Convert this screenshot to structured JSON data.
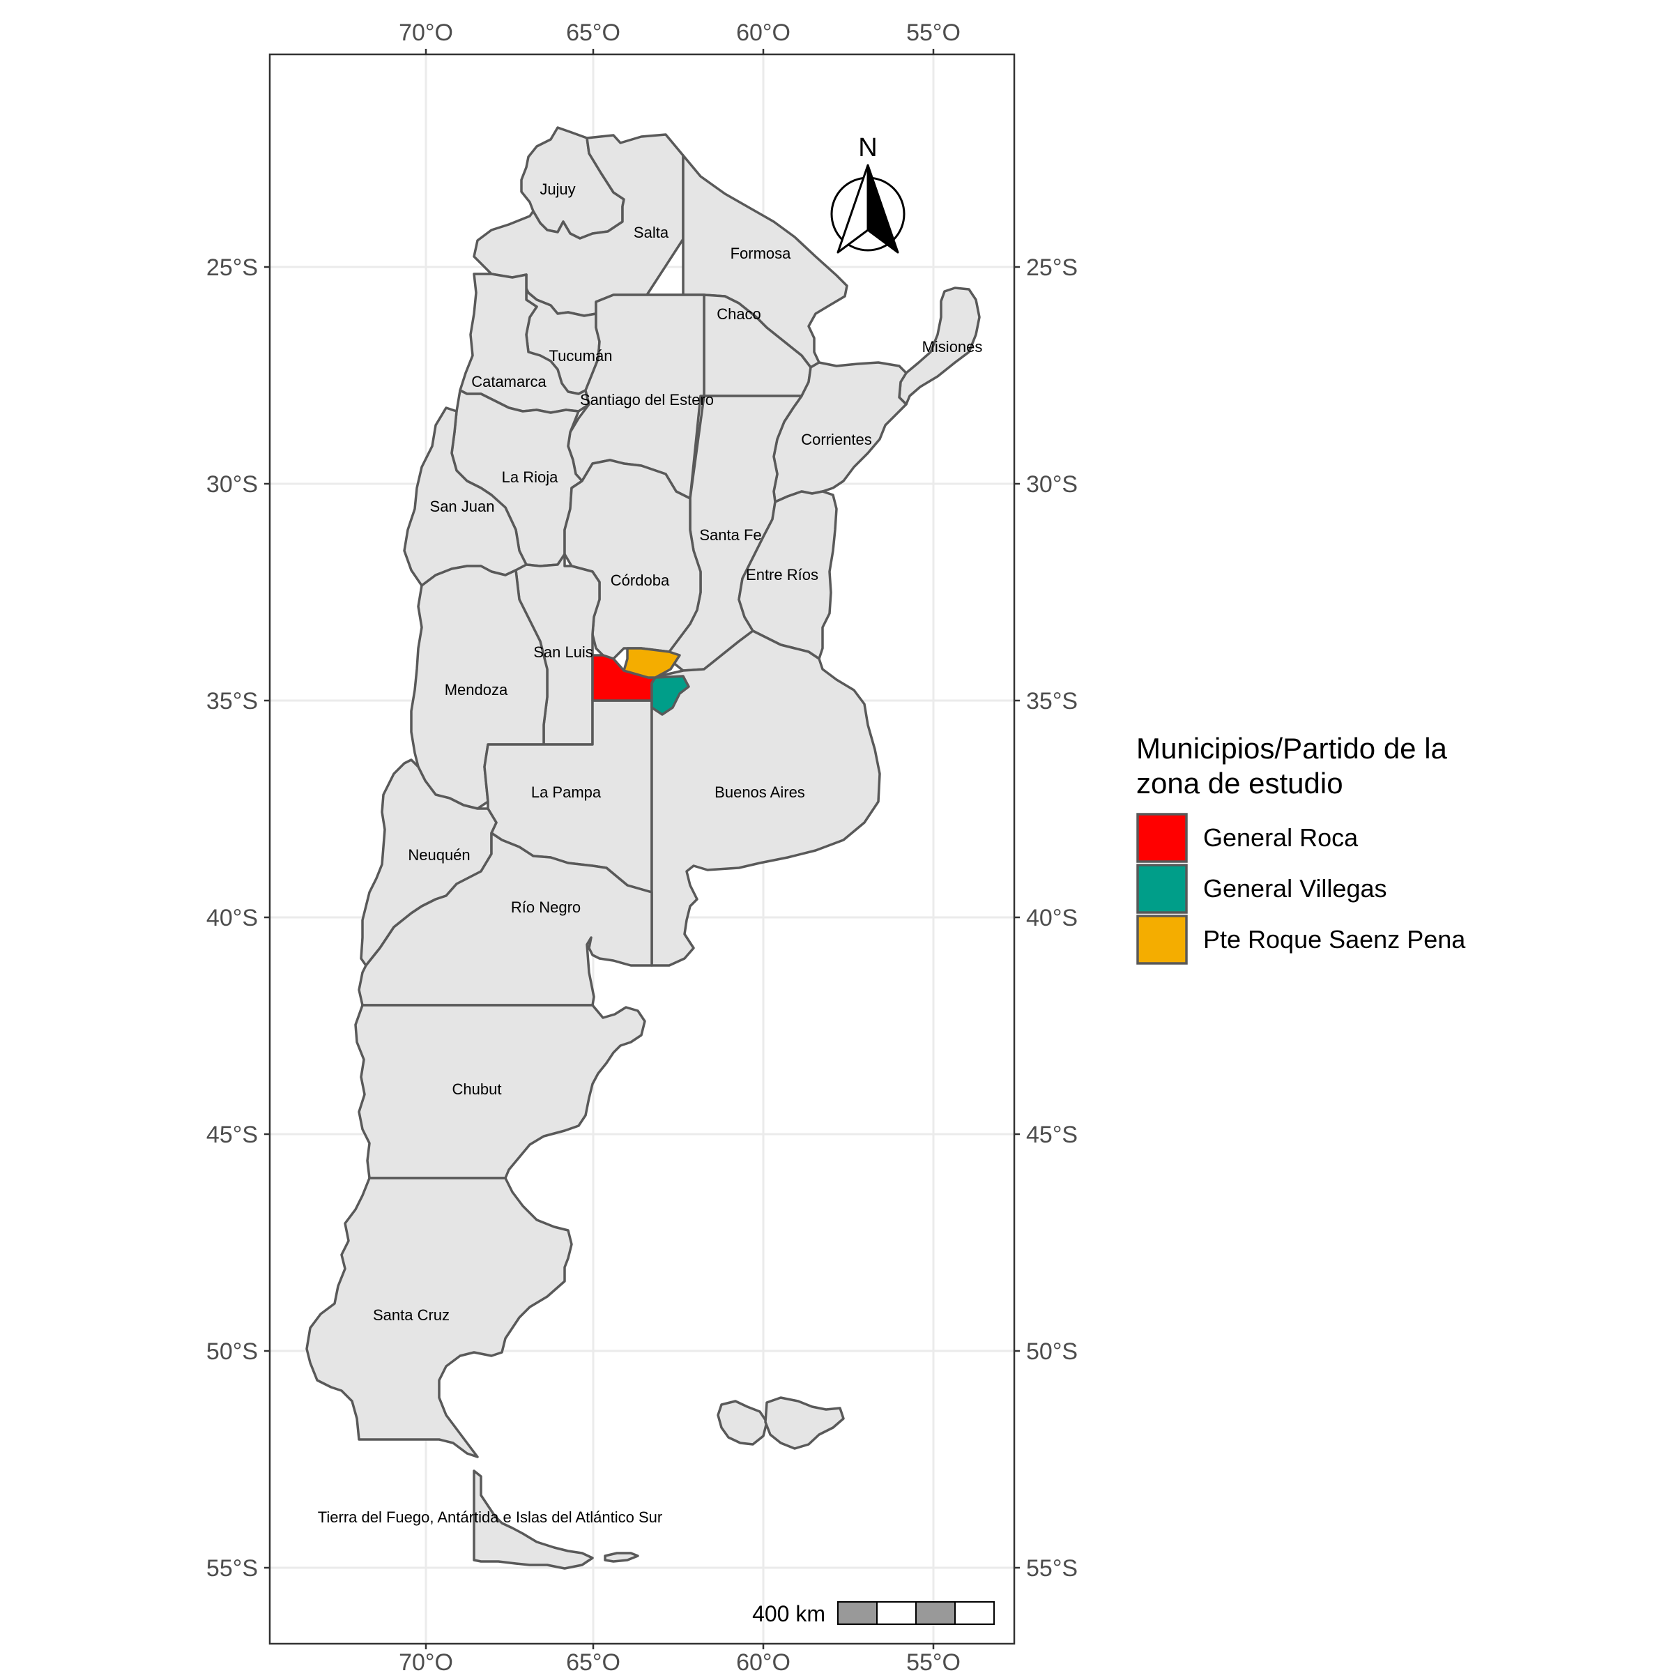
{
  "map": {
    "axes": {
      "x_ticks": [
        "70°O",
        "65°O",
        "60°O",
        "55°O"
      ],
      "y_ticks": [
        "25°S",
        "30°S",
        "35°S",
        "40°S",
        "45°S",
        "50°S",
        "55°S"
      ]
    },
    "provinces": [
      {
        "key": "jujuy",
        "label": "Jujuy"
      },
      {
        "key": "salta",
        "label": "Salta"
      },
      {
        "key": "formosa",
        "label": "Formosa"
      },
      {
        "key": "chaco",
        "label": "Chaco"
      },
      {
        "key": "misiones",
        "label": "Misiones"
      },
      {
        "key": "tucuman",
        "label": "Tucumán"
      },
      {
        "key": "catamarca",
        "label": "Catamarca"
      },
      {
        "key": "santiago",
        "label": "Santiago del Estero"
      },
      {
        "key": "corrientes",
        "label": "Corrientes"
      },
      {
        "key": "la-rioja",
        "label": "La Rioja"
      },
      {
        "key": "san-juan",
        "label": "San Juan"
      },
      {
        "key": "santa-fe",
        "label": "Santa Fe"
      },
      {
        "key": "entre-rios",
        "label": "Entre Ríos"
      },
      {
        "key": "cordoba",
        "label": "Córdoba"
      },
      {
        "key": "san-luis",
        "label": "San Luis"
      },
      {
        "key": "mendoza",
        "label": "Mendoza"
      },
      {
        "key": "la-pampa",
        "label": "La Pampa"
      },
      {
        "key": "buenos-aires",
        "label": "Buenos Aires"
      },
      {
        "key": "neuquen",
        "label": "Neuquén"
      },
      {
        "key": "rio-negro",
        "label": "Río Negro"
      },
      {
        "key": "chubut",
        "label": "Chubut"
      },
      {
        "key": "santa-cruz",
        "label": "Santa Cruz"
      },
      {
        "key": "tierra-del-fuego",
        "label": "Tierra del Fuego, Antártida e Islas del Atlántico Sur"
      }
    ],
    "north_arrow_label": "N",
    "scale_bar_label": "400 km"
  },
  "legend": {
    "title_line1": "Municipios/Partido de la",
    "title_line2": "zona de estudio",
    "items": [
      {
        "label": "General Roca",
        "color": "#ff0000"
      },
      {
        "label": "General Villegas",
        "color": "#009e89"
      },
      {
        "label": "Pte Roque Saenz Pena",
        "color": "#f4ad00"
      }
    ]
  }
}
